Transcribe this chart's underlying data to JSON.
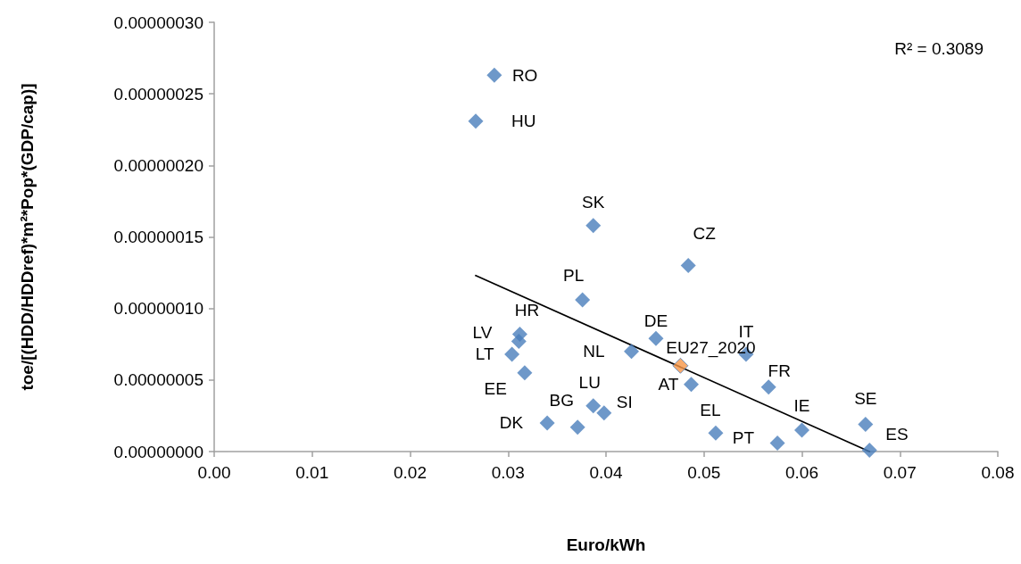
{
  "chart_data": {
    "type": "scatter",
    "xlabel": "Euro/kWh",
    "ylabel": "toe/[(HDD/HDDref)*m²*Pop*(GDP/cap)]",
    "xlim": [
      0,
      0.08
    ],
    "xticks": [
      {
        "value": 0,
        "label": "0.00"
      },
      {
        "value": 0.01,
        "label": "0.01"
      },
      {
        "value": 0.02,
        "label": "0.02"
      },
      {
        "value": 0.03,
        "label": "0.03"
      },
      {
        "value": 0.04,
        "label": "0.04"
      },
      {
        "value": 0.05,
        "label": "0.05"
      },
      {
        "value": 0.06,
        "label": "0.06"
      },
      {
        "value": 0.07,
        "label": "0.07"
      },
      {
        "value": 0.08,
        "label": "0.08"
      }
    ],
    "ylim": [
      0,
      3e-07
    ],
    "yticks": [
      {
        "value": 0,
        "label": "0.00000000"
      },
      {
        "value": 5e-08,
        "label": "0.00000005"
      },
      {
        "value": 1e-07,
        "label": "0.00000010"
      },
      {
        "value": 1.5e-07,
        "label": "0.00000015"
      },
      {
        "value": 2e-07,
        "label": "0.00000020"
      },
      {
        "value": 2.5e-07,
        "label": "0.00000025"
      },
      {
        "value": 3e-07,
        "label": "0.00000030"
      }
    ],
    "grid": false,
    "marker": "diamond",
    "series": [
      {
        "color": "#4a7ebb",
        "x": [
          0.0286,
          0.0267,
          0.0387,
          0.0484,
          0.0376,
          0.0312,
          0.0311,
          0.0304,
          0.0317,
          0.0451,
          0.0426,
          0.0476,
          0.0543,
          0.0487,
          0.0566,
          0.0387,
          0.0398,
          0.0371,
          0.034,
          0.0512,
          0.0575,
          0.06,
          0.0665,
          0.0669
        ],
        "values": [
          2.63e-07,
          2.31e-07,
          1.58e-07,
          1.3e-07,
          1.06e-07,
          8.2e-08,
          7.7e-08,
          6.8e-08,
          5.5e-08,
          7.9e-08,
          7e-08,
          6e-08,
          6.8e-08,
          4.7e-08,
          4.5e-08,
          3.2e-08,
          2.7e-08,
          1.7e-08,
          2e-08,
          1.3e-08,
          6e-09,
          1.5e-08,
          1.9e-08,
          1e-09
        ],
        "colors": [
          "#4a7ebb",
          "#4a7ebb",
          "#4a7ebb",
          "#4a7ebb",
          "#4a7ebb",
          "#4a7ebb",
          "#4a7ebb",
          "#4a7ebb",
          "#4a7ebb",
          "#4a7ebb",
          "#4a7ebb",
          "#f79646",
          "#4a7ebb",
          "#4a7ebb",
          "#4a7ebb",
          "#4a7ebb",
          "#4a7ebb",
          "#4a7ebb",
          "#4a7ebb",
          "#4a7ebb",
          "#4a7ebb",
          "#4a7ebb",
          "#4a7ebb",
          "#4a7ebb"
        ]
      },
      {
        "type": "line",
        "color": "#000000",
        "marker": "none",
        "line_style": "solid",
        "x": [
          0.0267,
          0.0669
        ],
        "values": [
          1.23e-07,
          0
        ]
      }
    ],
    "annotations": [
      {
        "text": "RO",
        "x": 0.0286,
        "y": 2.63e-07
      },
      {
        "text": "HU",
        "x": 0.0267,
        "y": 2.31e-07
      },
      {
        "text": "SK",
        "x": 0.0387,
        "y": 1.58e-07
      },
      {
        "text": "CZ",
        "x": 0.0484,
        "y": 1.3e-07
      },
      {
        "text": "PL",
        "x": 0.0376,
        "y": 1.06e-07
      },
      {
        "text": "HR",
        "x": 0.0312,
        "y": 8.2e-08
      },
      {
        "text": "LV",
        "x": 0.0311,
        "y": 7.7e-08
      },
      {
        "text": "LT",
        "x": 0.0304,
        "y": 6.8e-08
      },
      {
        "text": "EE",
        "x": 0.0317,
        "y": 5.5e-08
      },
      {
        "text": "DE",
        "x": 0.0451,
        "y": 7.9e-08
      },
      {
        "text": "NL",
        "x": 0.0426,
        "y": 7e-08
      },
      {
        "text": "EU27_2020",
        "x": 0.0476,
        "y": 6e-08
      },
      {
        "text": "IT",
        "x": 0.0543,
        "y": 6.8e-08
      },
      {
        "text": "AT",
        "x": 0.0487,
        "y": 4.7e-08
      },
      {
        "text": "FR",
        "x": 0.0566,
        "y": 4.5e-08
      },
      {
        "text": "LU",
        "x": 0.0387,
        "y": 3.2e-08
      },
      {
        "text": "SI",
        "x": 0.0398,
        "y": 2.7e-08
      },
      {
        "text": "BG",
        "x": 0.0371,
        "y": 1.7e-08
      },
      {
        "text": "DK",
        "x": 0.034,
        "y": 2e-08
      },
      {
        "text": "EL",
        "x": 0.0512,
        "y": 1.3e-08
      },
      {
        "text": "PT",
        "x": 0.0575,
        "y": 6e-09
      },
      {
        "text": "IE",
        "x": 0.06,
        "y": 1.5e-08
      },
      {
        "text": "SE",
        "x": 0.0665,
        "y": 1.9e-08
      },
      {
        "text": "ES",
        "x": 0.0669,
        "y": 1e-09
      },
      "R² = 0.3089"
    ]
  }
}
